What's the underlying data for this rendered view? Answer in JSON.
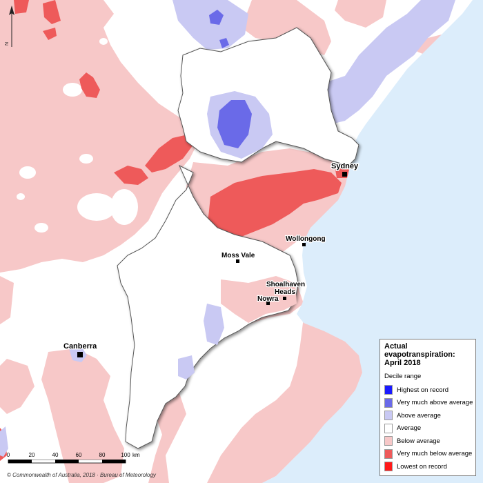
{
  "legend": {
    "title_line1": "Actual",
    "title_line2": "evapotranspiration:",
    "title_line3": "April 2018",
    "subtitle": "Decile range",
    "items": [
      {
        "label": "Highest on record",
        "color": "#1a1aff"
      },
      {
        "label": "Very much above average",
        "color": "#6a6ae8"
      },
      {
        "label": "Above average",
        "color": "#c9c9f3"
      },
      {
        "label": "Average",
        "color": "#ffffff"
      },
      {
        "label": "Below average",
        "color": "#f7c8c8"
      },
      {
        "label": "Very much below average",
        "color": "#ee5a5a"
      },
      {
        "label": "Lowest on record",
        "color": "#ff1a1a"
      }
    ]
  },
  "places": {
    "sydney": "Sydney",
    "wollongong": "Wollongong",
    "moss_vale": "Moss Vale",
    "shoalhaven_1": "Shoalhaven",
    "shoalhaven_2": "Heads",
    "nowra": "Nowra",
    "canberra": "Canberra"
  },
  "scale": {
    "ticks": [
      "0",
      "20",
      "40",
      "60",
      "80",
      "100"
    ],
    "unit": "km"
  },
  "north_label": "N",
  "credit": "© Commonwealth of Australia, 2018 · Bureau of Meteorology",
  "colors": {
    "ocean": "#dcedfb",
    "land": "#ffffff",
    "below": "#f7c8c8",
    "very_below": "#ee5a5a",
    "lowest": "#ff1a1a",
    "above": "#c9c9f3",
    "very_above": "#6a6ae8",
    "highest": "#1a1aff"
  }
}
